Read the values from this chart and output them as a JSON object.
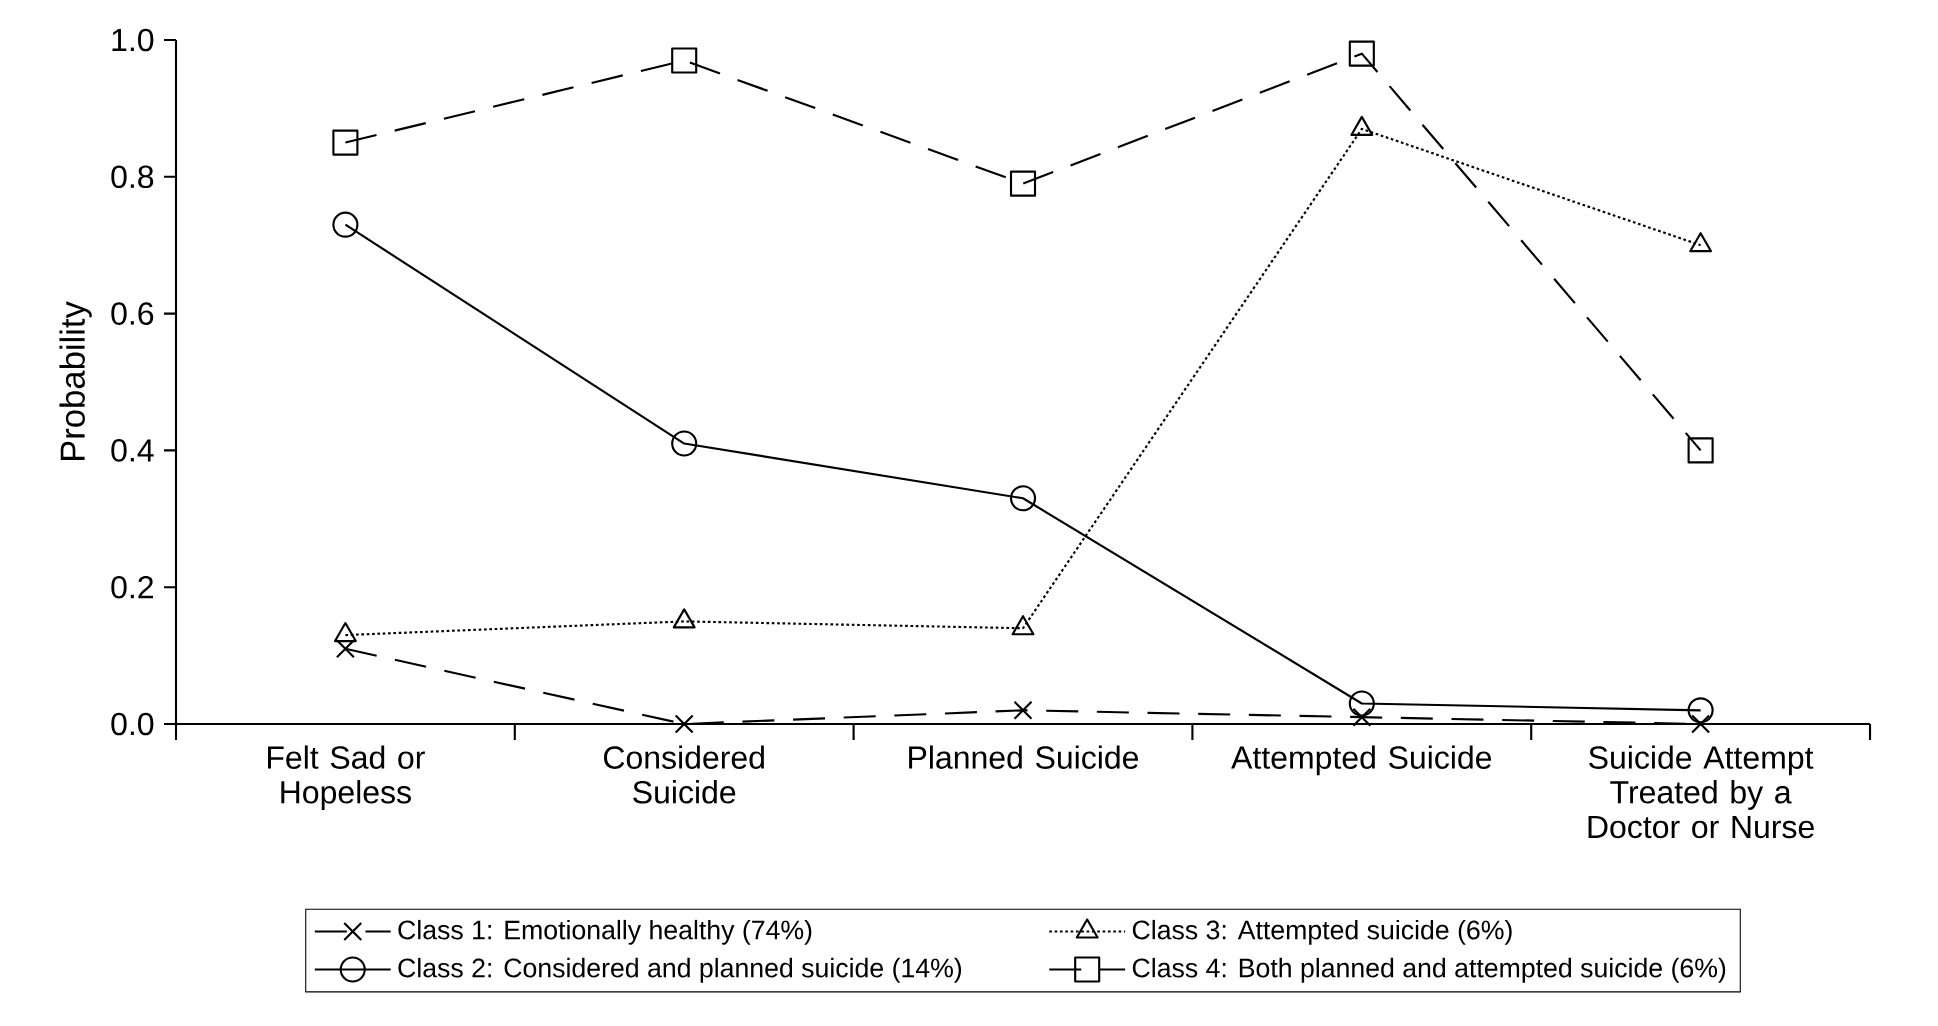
{
  "chart_data": {
    "type": "line",
    "ylabel": "Probability",
    "categories": [
      "Felt Sad or Hopeless",
      "Considered Suicide",
      "Planned Suicide",
      "Attempted Suicide",
      "Suicide Attempt Treated by a Doctor or Nurse"
    ],
    "ylim": [
      0,
      1
    ],
    "yticks": [
      {
        "value": 0,
        "label": "0.0"
      },
      {
        "value": 0.2,
        "label": "0.2"
      },
      {
        "value": 0.4,
        "label": "0.4"
      },
      {
        "value": 0.6,
        "label": "0.6"
      },
      {
        "value": 0.8,
        "label": "0.8"
      },
      {
        "value": 1,
        "label": "1.0"
      }
    ],
    "legend": "bottom",
    "series": [
      {
        "name": "Class 1: Emotionally healthy (74%)",
        "color": "#000000",
        "marker": "cross",
        "line_style": "dashed",
        "values": [
          0.11,
          0.0,
          0.02,
          0.01,
          0.0
        ]
      },
      {
        "name": "Class 2: Considered and planned suicide (14%)",
        "color": "#000000",
        "marker": "circle",
        "line_style": "solid",
        "values": [
          0.73,
          0.41,
          0.33,
          0.03,
          0.02
        ]
      },
      {
        "name": "Class 3: Attempted suicide (6%)",
        "color": "#000000",
        "marker": "triangle",
        "line_style": "dotted",
        "values": [
          0.13,
          0.15,
          0.14,
          0.87,
          0.7
        ]
      },
      {
        "name": "Class 4: Both planned and attempted suicide (6%)",
        "color": "#000000",
        "marker": "square",
        "line_style": "dashed",
        "values": [
          0.85,
          0.97,
          0.79,
          0.98,
          0.4
        ]
      }
    ]
  }
}
